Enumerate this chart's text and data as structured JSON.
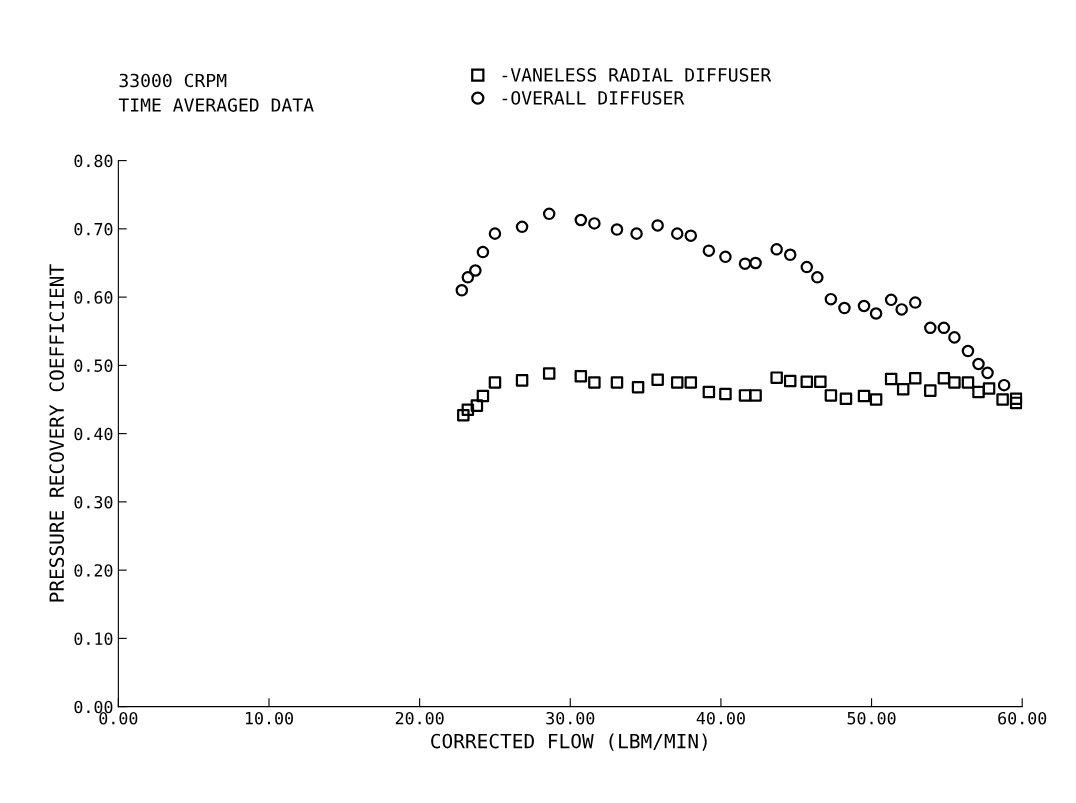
{
  "chart_data": {
    "type": "scatter",
    "xlabel": "CORRECTED FLOW (LBM/MIN)",
    "ylabel": "PRESSURE RECOVERY COEFFICIENT",
    "annotations": [
      "33000 CRPM",
      "TIME AVERAGED DATA"
    ],
    "xlim": [
      0,
      60
    ],
    "ylim": [
      0,
      0.8
    ],
    "xticks": [
      {
        "value": 0,
        "label": "0.00"
      },
      {
        "value": 10,
        "label": "10.00"
      },
      {
        "value": 20,
        "label": "20.00"
      },
      {
        "value": 30,
        "label": "30.00"
      },
      {
        "value": 40,
        "label": "40.00"
      },
      {
        "value": 50,
        "label": "50.00"
      },
      {
        "value": 60,
        "label": "60.00"
      }
    ],
    "yticks": [
      {
        "value": 0,
        "label": "0.00"
      },
      {
        "value": 0.1,
        "label": "0.10"
      },
      {
        "value": 0.2,
        "label": "0.20"
      },
      {
        "value": 0.3,
        "label": "0.30"
      },
      {
        "value": 0.4,
        "label": "0.40"
      },
      {
        "value": 0.5,
        "label": "0.50"
      },
      {
        "value": 0.6,
        "label": "0.60"
      },
      {
        "value": 0.7,
        "label": "0.70"
      },
      {
        "value": 0.8,
        "label": "0.80"
      }
    ],
    "grid": false,
    "legend": "top",
    "series": [
      {
        "name": "-VANELESS RADIAL DIFFUSER",
        "color": "#000000",
        "marker": "square",
        "x": [
          59.6,
          59.6,
          58.7,
          57.8,
          57.1,
          56.4,
          55.5,
          54.8,
          53.9,
          52.9,
          52.1,
          51.3,
          50.3,
          49.5,
          48.3,
          47.3,
          46.6,
          45.7,
          44.6,
          43.7,
          42.3,
          41.6,
          40.3,
          39.2,
          38.0,
          37.1,
          35.8,
          34.5,
          33.1,
          31.6,
          30.7,
          28.6,
          26.8,
          25.0,
          24.2,
          23.8,
          23.2,
          22.9
        ],
        "values": [
          0.451,
          0.445,
          0.45,
          0.466,
          0.461,
          0.475,
          0.475,
          0.481,
          0.463,
          0.481,
          0.465,
          0.48,
          0.45,
          0.455,
          0.451,
          0.456,
          0.476,
          0.476,
          0.477,
          0.482,
          0.456,
          0.456,
          0.458,
          0.461,
          0.475,
          0.475,
          0.479,
          0.468,
          0.475,
          0.475,
          0.484,
          0.488,
          0.478,
          0.475,
          0.455,
          0.441,
          0.435,
          0.427
        ]
      },
      {
        "name": "-OVERALL DIFFUSER",
        "color": "#000000",
        "marker": "circle",
        "x": [
          58.8,
          57.7,
          57.1,
          56.4,
          55.5,
          54.8,
          53.9,
          52.9,
          52.0,
          51.3,
          50.3,
          49.5,
          48.2,
          47.3,
          46.4,
          45.7,
          44.6,
          43.7,
          42.3,
          41.6,
          40.3,
          39.2,
          38.0,
          37.1,
          35.8,
          34.4,
          33.1,
          31.6,
          30.7,
          28.6,
          26.8,
          25.0,
          24.2,
          23.7,
          23.2,
          22.8
        ],
        "values": [
          0.471,
          0.489,
          0.502,
          0.521,
          0.541,
          0.555,
          0.555,
          0.592,
          0.582,
          0.596,
          0.576,
          0.587,
          0.584,
          0.597,
          0.629,
          0.644,
          0.662,
          0.67,
          0.65,
          0.649,
          0.659,
          0.668,
          0.69,
          0.693,
          0.705,
          0.693,
          0.699,
          0.708,
          0.713,
          0.722,
          0.703,
          0.693,
          0.666,
          0.639,
          0.629,
          0.61
        ]
      }
    ]
  }
}
